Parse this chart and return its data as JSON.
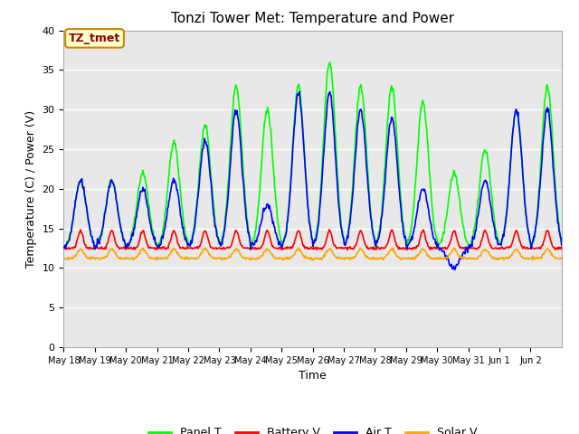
{
  "title": "Tonzi Tower Met: Temperature and Power",
  "xlabel": "Time",
  "ylabel": "Temperature (C) / Power (V)",
  "ylim": [
    0,
    40
  ],
  "yticks": [
    0,
    5,
    10,
    15,
    20,
    25,
    30,
    35,
    40
  ],
  "annotation_text": "TZ_tmet",
  "annotation_box_color": "#FFFFCC",
  "annotation_border_color": "#CC8800",
  "annotation_text_color": "#8B0000",
  "series": {
    "panel_t": {
      "label": "Panel T",
      "color": "#00FF00",
      "linewidth": 1.2
    },
    "battery_v": {
      "label": "Battery V",
      "color": "#FF0000",
      "linewidth": 1.2
    },
    "air_t": {
      "label": "Air T",
      "color": "#0000FF",
      "linewidth": 1.2
    },
    "solar_v": {
      "label": "Solar V",
      "color": "#FFA500",
      "linewidth": 1.2
    }
  },
  "bg_color": "#E8E8E8",
  "title_fontsize": 11,
  "axis_fontsize": 9,
  "tick_fontsize": 8,
  "legend_fontsize": 9,
  "grid_color": "#FFFFFF",
  "grid_linewidth": 1.0,
  "day_peaks_panel": [
    21,
    21,
    22,
    26,
    28,
    33,
    30,
    33,
    36,
    33,
    33,
    31,
    22,
    25,
    30,
    33
  ],
  "day_peaks_air": [
    21,
    21,
    20,
    21,
    26,
    30,
    18,
    32,
    32,
    30,
    29,
    20,
    10,
    21,
    30,
    30
  ],
  "night_base": 12.5
}
